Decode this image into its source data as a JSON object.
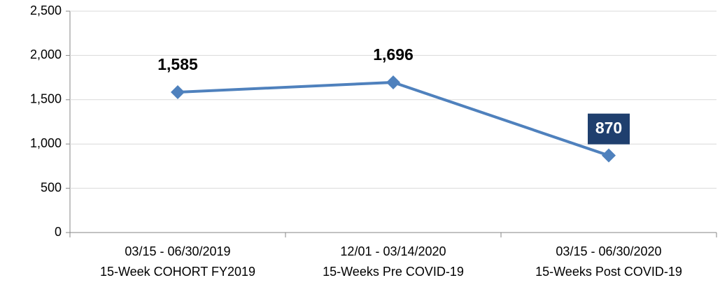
{
  "chart_data": {
    "type": "line",
    "categories": [
      [
        "03/15 - 06/30/2019",
        "15-Week COHORT FY2019"
      ],
      [
        "12/01 - 03/14/2020",
        "15-Weeks Pre COVID-19"
      ],
      [
        "03/15 - 06/30/2020",
        "15-Weeks Post COVID-19"
      ]
    ],
    "series": [
      {
        "color": "#4f81bd",
        "values": [
          1585,
          1696,
          870
        ],
        "value_labels": [
          "1,585",
          "1,696",
          "870"
        ],
        "value_label_boxes": [
          null,
          null,
          "#1f3f6e"
        ]
      }
    ],
    "ylim": [
      0,
      2500
    ],
    "yticks": [
      0,
      500,
      {
        "value": 1000,
        "label": "1,000"
      },
      {
        "value": 1500,
        "label": "1,500"
      },
      {
        "value": 2000,
        "label": "2,000"
      },
      {
        "value": 2500,
        "label": "2,500"
      }
    ],
    "grid": true
  }
}
